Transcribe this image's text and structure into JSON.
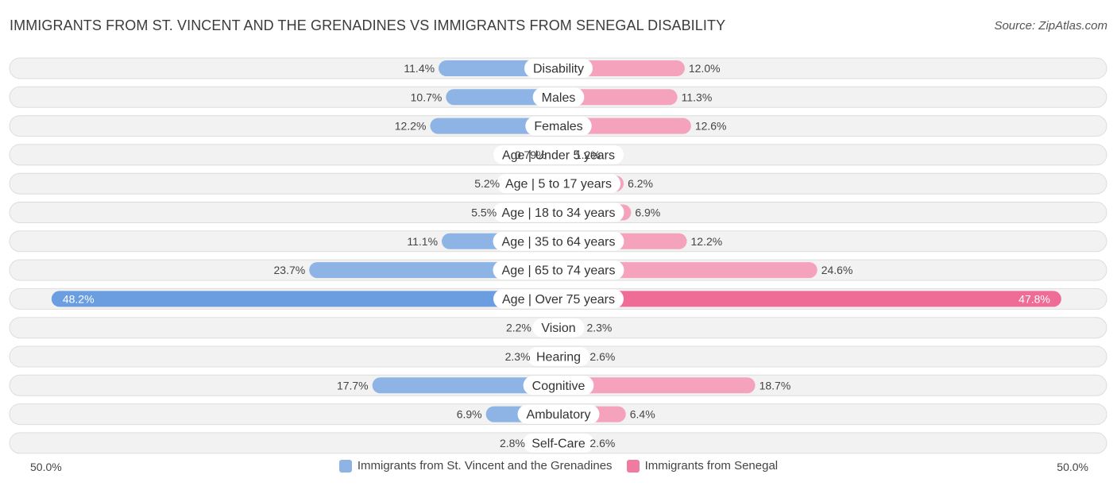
{
  "title": "IMMIGRANTS FROM ST. VINCENT AND THE GRENADINES VS IMMIGRANTS FROM SENEGAL DISABILITY",
  "source": "Source: ZipAtlas.com",
  "axis": {
    "left_label": "50.0%",
    "right_label": "50.0%"
  },
  "colors": {
    "left_bar": "#8db4e5",
    "left_bar_strong": "#6a9ee0",
    "right_bar": "#f5a3bd",
    "right_bar_strong": "#ef6c96",
    "row_bg": "#f2f2f2",
    "row_border": "#dddddd"
  },
  "legend": [
    {
      "label": "Immigrants from St. Vincent and the Grenadines",
      "color": "#8db4e5"
    },
    {
      "label": "Immigrants from Senegal",
      "color": "#ef7ba0"
    }
  ],
  "chart_data": {
    "type": "bar",
    "orientation": "horizontal-diverging",
    "xlim": [
      -50,
      50
    ],
    "categories": [
      "Disability",
      "Males",
      "Females",
      "Age | Under 5 years",
      "Age | 5 to 17 years",
      "Age | 18 to 34 years",
      "Age | 35 to 64 years",
      "Age | 65 to 74 years",
      "Age | Over 75 years",
      "Vision",
      "Hearing",
      "Cognitive",
      "Ambulatory",
      "Self-Care"
    ],
    "series": [
      {
        "name": "Immigrants from St. Vincent and the Grenadines",
        "values": [
          11.4,
          10.7,
          12.2,
          0.79,
          5.2,
          5.5,
          11.1,
          23.7,
          48.2,
          2.2,
          2.3,
          17.7,
          6.9,
          2.8
        ],
        "labels": [
          "11.4%",
          "10.7%",
          "12.2%",
          "0.79%",
          "5.2%",
          "5.5%",
          "11.1%",
          "23.7%",
          "48.2%",
          "2.2%",
          "2.3%",
          "17.7%",
          "6.9%",
          "2.8%"
        ]
      },
      {
        "name": "Immigrants from Senegal",
        "values": [
          12.0,
          11.3,
          12.6,
          1.2,
          6.2,
          6.9,
          12.2,
          24.6,
          47.8,
          2.3,
          2.6,
          18.7,
          6.4,
          2.6
        ],
        "labels": [
          "12.0%",
          "11.3%",
          "12.6%",
          "1.2%",
          "6.2%",
          "6.9%",
          "12.2%",
          "24.6%",
          "47.8%",
          "2.3%",
          "2.6%",
          "18.7%",
          "6.4%",
          "2.6%"
        ]
      }
    ]
  }
}
